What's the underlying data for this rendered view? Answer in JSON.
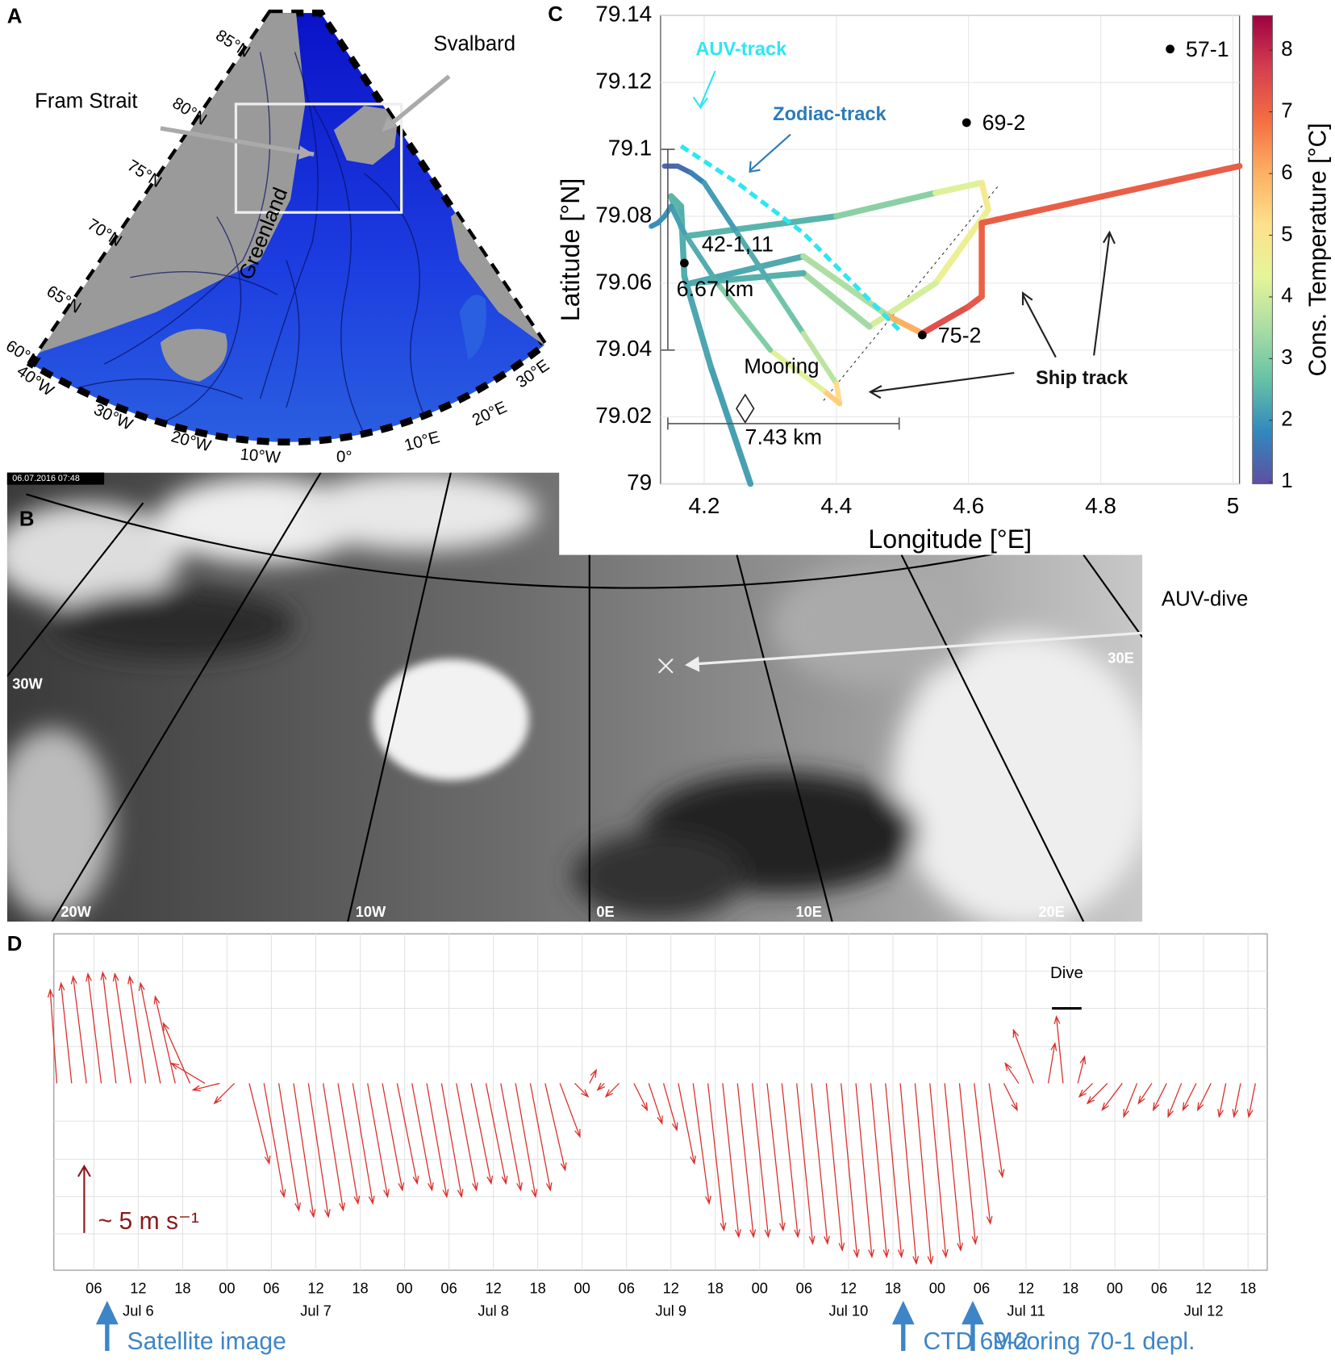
{
  "panel_labels": [
    "A",
    "B",
    "C",
    "D"
  ],
  "map_a": {
    "fram_strait": "Fram Strait",
    "svalbard": "Svalbard",
    "greenland": "Greenland",
    "lat_labels": [
      "85°N",
      "80°N",
      "75°N",
      "70°N",
      "65°N",
      "60°N"
    ],
    "lon_labels": [
      "40°W",
      "30°W",
      "20°W",
      "10°W",
      "0°",
      "10°E",
      "20°E",
      "30°E"
    ]
  },
  "satellite": {
    "timestamp": "06.07.2016 07:48",
    "lon_labels": [
      "30W",
      "20W",
      "10W",
      "0E",
      "10E",
      "20E",
      "30E"
    ],
    "annotation": "AUV-dive"
  },
  "chart_data": [
    {
      "type": "track",
      "xlabel": "Longitude [°E]",
      "ylabel": "Latitude [°N]",
      "colorbar_label": "Cons. Temperature [°C]",
      "xlim": [
        4.134,
        5.01
      ],
      "ylim": [
        79,
        79.14
      ],
      "xticks": [
        4.2,
        4.4,
        4.6,
        4.8,
        5
      ],
      "yticks": [
        79,
        79.02,
        79.04,
        79.06,
        79.08,
        79.1,
        79.12,
        79.14
      ],
      "grid": true,
      "clim": [
        0.97,
        8.56
      ],
      "cticks": [
        1,
        2,
        3,
        4,
        5,
        6,
        7,
        8
      ],
      "colormap": [
        "#5e4fa2",
        "#3288bd",
        "#66c2a5",
        "#abdda4",
        "#e6f598",
        "#fee08b",
        "#fdae61",
        "#f46d43",
        "#d53e4f",
        "#9e0142"
      ],
      "series": [
        {
          "name": "Ship track",
          "color": "#111111",
          "lon": [
            4.27,
            4.21,
            4.17,
            4.165,
            4.15,
            4.17,
            4.4,
            4.55,
            4.62,
            4.63,
            4.55,
            4.45,
            4.35,
            4.18,
            4.35,
            4.48,
            4.53,
            4.6,
            4.62,
            4.62,
            5.01
          ],
          "lat": [
            79.0,
            79.035,
            79.062,
            79.083,
            79.086,
            79.074,
            79.08,
            79.087,
            79.09,
            79.082,
            79.06,
            79.047,
            79.063,
            79.06,
            79.068,
            79.05,
            79.045,
            79.053,
            79.056,
            79.078,
            79.095
          ],
          "temperature": [
            2.1,
            2.2,
            2.3,
            2.4,
            2.5,
            2.5,
            2.4,
            3.8,
            4.6,
            5.0,
            4.2,
            4.0,
            2.8,
            2.0,
            2.6,
            4.5,
            7.5,
            7.3,
            7.2,
            7.0,
            7.3
          ]
        },
        {
          "name": "Zodiac-track",
          "color": "#2b7bba",
          "lon": [
            4.14,
            4.16,
            4.18,
            4.2,
            4.25,
            4.3,
            4.35,
            4.4,
            4.405,
            4.38,
            4.3,
            4.22,
            4.17,
            4.15,
            4.14,
            4.13,
            4.12
          ],
          "lat": [
            79.095,
            79.095,
            79.093,
            79.09,
            79.075,
            79.06,
            79.045,
            79.03,
            79.024,
            79.028,
            79.04,
            79.06,
            79.075,
            79.083,
            79.08,
            79.078,
            79.077
          ],
          "temperature": [
            1.3,
            1.3,
            1.5,
            2.0,
            2.2,
            2.5,
            3.0,
            4.5,
            6.0,
            5.0,
            3.5,
            2.5,
            2.2,
            2.1,
            2.0,
            1.9,
            1.9
          ]
        },
        {
          "name": "AUV-track",
          "color": "#2ee6f2",
          "lon": [
            4.165,
            4.25,
            4.35,
            4.45,
            4.5
          ],
          "lat": [
            79.101,
            79.09,
            79.075,
            79.055,
            79.045
          ]
        }
      ],
      "stations": [
        {
          "name": "57-1",
          "lon": 4.905,
          "lat": 79.13
        },
        {
          "name": "69-2",
          "lon": 4.597,
          "lat": 79.108
        },
        {
          "name": "75-2",
          "lon": 4.53,
          "lat": 79.0445
        },
        {
          "name": "42-1,11",
          "lon": 4.17,
          "lat": 79.066
        }
      ],
      "mooring": {
        "label": "Mooring",
        "lon": 4.262,
        "lat": 79.0225
      },
      "scale_bars": [
        {
          "label": "6.67 km",
          "lon": 4.145,
          "lat": [
            79.04,
            79.1
          ]
        },
        {
          "label": "7.43 km",
          "lat": 79.018,
          "lon": [
            4.145,
            4.495
          ]
        }
      ]
    },
    {
      "type": "quiver",
      "color": "#d9302c",
      "xlim": [
        0.6,
        164.6
      ],
      "ylim": [
        -14,
        11.2
      ],
      "xticks": [
        {
          "value": 6,
          "label": "06"
        },
        {
          "value": 12,
          "label": "12"
        },
        {
          "value": 18,
          "label": "18"
        },
        {
          "value": 24,
          "label": "00"
        },
        {
          "value": 30,
          "label": "06"
        },
        {
          "value": 36,
          "label": "12"
        },
        {
          "value": 42,
          "label": "18"
        },
        {
          "value": 48,
          "label": "00"
        },
        {
          "value": 54,
          "label": "06"
        },
        {
          "value": 60,
          "label": "12"
        },
        {
          "value": 66,
          "label": "18"
        },
        {
          "value": 72,
          "label": "00"
        },
        {
          "value": 78,
          "label": "06"
        },
        {
          "value": 84,
          "label": "12"
        },
        {
          "value": 90,
          "label": "18"
        },
        {
          "value": 96,
          "label": "00"
        },
        {
          "value": 102,
          "label": "06"
        },
        {
          "value": 108,
          "label": "12"
        },
        {
          "value": 114,
          "label": "18"
        },
        {
          "value": 120,
          "label": "00"
        },
        {
          "value": 126,
          "label": "06"
        },
        {
          "value": 132,
          "label": "12"
        },
        {
          "value": 138,
          "label": "18"
        },
        {
          "value": 144,
          "label": "00"
        },
        {
          "value": 150,
          "label": "06"
        },
        {
          "value": 156,
          "label": "12"
        },
        {
          "value": 162,
          "label": "18"
        }
      ],
      "day_labels": [
        {
          "value": 12,
          "label": "Jul 6"
        },
        {
          "value": 36,
          "label": "Jul 7"
        },
        {
          "value": 60,
          "label": "Jul 8"
        },
        {
          "value": 84,
          "label": "Jul 9"
        },
        {
          "value": 108,
          "label": "Jul 10"
        },
        {
          "value": 132,
          "label": "Jul 11"
        },
        {
          "value": 156,
          "label": "Jul 12"
        }
      ],
      "time": [
        1,
        3,
        5,
        7,
        9,
        11,
        13,
        15,
        17,
        19,
        21,
        23,
        25,
        27,
        29,
        31,
        33,
        35,
        37,
        39,
        41,
        43,
        45,
        47,
        49,
        51,
        53,
        55,
        57,
        59,
        61,
        63,
        65,
        67,
        69,
        71,
        73,
        75,
        77,
        79,
        81,
        83,
        85,
        87,
        89,
        91,
        93,
        95,
        97,
        99,
        101,
        103,
        105,
        107,
        109,
        111,
        113,
        115,
        117,
        119,
        121,
        123,
        125,
        127,
        129,
        131,
        133,
        135,
        137,
        139,
        141,
        143,
        145,
        147,
        149,
        151,
        153,
        155,
        157,
        159,
        161,
        163
      ],
      "u": [
        -0.5,
        -0.8,
        -1,
        -1,
        -1,
        -1.2,
        -1.2,
        -1.5,
        -1.5,
        -2,
        -2.5,
        -2,
        -1.5,
        1.5,
        1.5,
        1.5,
        1.5,
        1.5,
        1.5,
        1.5,
        1.5,
        1.5,
        1.5,
        1.5,
        1.5,
        1.5,
        1.5,
        1.5,
        1.5,
        1.5,
        1.5,
        1.5,
        1.5,
        1.5,
        1.5,
        1,
        0.5,
        -0.5,
        -1,
        1,
        1,
        1,
        1.2,
        1.2,
        1.2,
        1.2,
        1.2,
        1.2,
        1.2,
        1.2,
        1.2,
        1.2,
        1.2,
        1.2,
        1.2,
        1.2,
        1.2,
        1.2,
        1.2,
        1.2,
        1.2,
        1.2,
        1.2,
        1,
        1,
        -1,
        -1.5,
        0.5,
        -0.5,
        0.5,
        -1,
        -1.5,
        -1.5,
        -1,
        -1,
        -1,
        -1,
        -1,
        -1,
        -0.5,
        -0.5,
        -0.5
      ],
      "v": [
        7,
        7.5,
        8,
        8.2,
        8.3,
        8.2,
        8,
        7.5,
        6.5,
        4.5,
        1.5,
        -0.5,
        -1.5,
        -6,
        -8.5,
        -9.5,
        -10,
        -10,
        -9.5,
        -9,
        -9,
        -8.5,
        -8,
        -7.5,
        -8,
        -8.5,
        -8.5,
        -8,
        -7.5,
        -7.5,
        -8,
        -8.5,
        -8,
        -6.5,
        -4,
        -1,
        1,
        -0.5,
        -1,
        -2,
        -3,
        -3.5,
        -6,
        -9,
        -11,
        -11.5,
        -11.5,
        -11.5,
        -11,
        -11.5,
        -12,
        -12,
        -12.5,
        -13,
        -13,
        -13,
        -13,
        -13.5,
        -13.5,
        -13,
        -12.5,
        -12,
        -10.5,
        -7,
        -2,
        1.5,
        4,
        3,
        5,
        2,
        -1,
        -1.5,
        -2,
        -2.5,
        -1.5,
        -2,
        -2.5,
        -2,
        -2,
        -2.5,
        -2.5,
        -2.5
      ],
      "reference_arrow": {
        "value": 5,
        "label": "~ 5 m s⁻¹",
        "color": "#8b1a1a"
      },
      "dive": {
        "label": "Dive",
        "start": 135.5,
        "end": 139.5
      },
      "events": {
        "color": "#3d85c6",
        "items": [
          {
            "label": "Satellite image",
            "time": 7.8
          },
          {
            "label": "CTD 69-2",
            "time": 115.4
          },
          {
            "label": "Mooring 70-1 depl.",
            "time": 124.8
          }
        ]
      }
    }
  ]
}
